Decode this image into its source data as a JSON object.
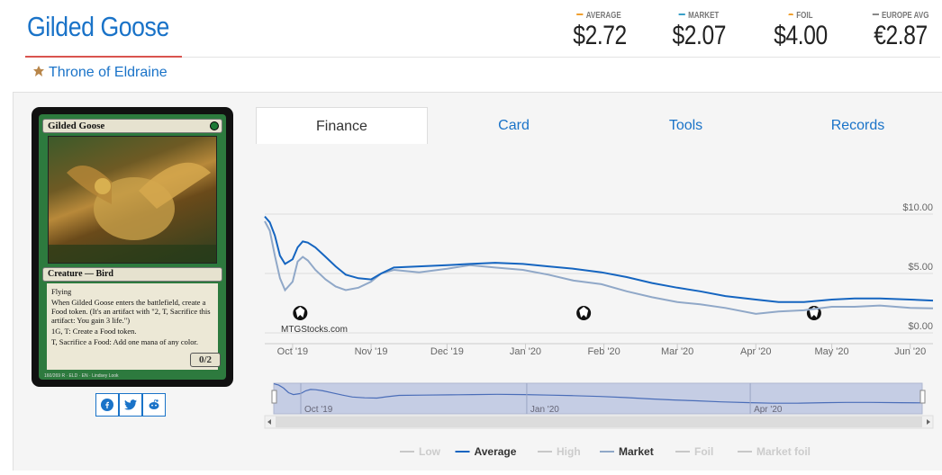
{
  "card": {
    "name": "Gilded Goose",
    "set": "Throne of Eldraine",
    "type_line": "Creature — Bird",
    "rules": [
      "Flying",
      "When Gilded Goose enters the battlefield, create a Food token. (It's an artifact with \"2, T, Sacrifice this artifact: You gain 3 life.\")",
      "1G, T: Create a Food token.",
      "T, Sacrifice a Food: Add one mana of any color."
    ],
    "pt": "0/2",
    "footer": "160/269 R · ELD · EN · Lindsey Look"
  },
  "prices": [
    {
      "label": "AVERAGE",
      "value": "$2.72",
      "color": "#f0a030"
    },
    {
      "label": "MARKET",
      "value": "$2.07",
      "color": "#3aa0c8"
    },
    {
      "label": "FOIL",
      "value": "$4.00",
      "color": "#f0a030"
    },
    {
      "label": "EUROPE AVG",
      "value": "€2.87",
      "color": "#888888"
    }
  ],
  "tabs": [
    "Finance",
    "Card",
    "Tools",
    "Records"
  ],
  "active_tab": "Finance",
  "watermark": "MTGStocks.com",
  "chart_data": {
    "type": "line",
    "x_ticks": [
      "Oct '19",
      "Nov '19",
      "Dec '19",
      "Jan '20",
      "Feb '20",
      "Mar '20",
      "Apr '20",
      "May '20",
      "Jun '20"
    ],
    "y_ticks": [
      "$10.00",
      "$5.00",
      "$0.00"
    ],
    "ylim": [
      0,
      10
    ],
    "legend": [
      "Low",
      "Average",
      "High",
      "Market",
      "Foil",
      "Market foil"
    ],
    "legend_active": [
      "Average",
      "Market"
    ],
    "navigator_labels": [
      "Oct '19",
      "Jan '20",
      "Apr '20"
    ],
    "series": [
      {
        "name": "Average",
        "color": "#1565c0",
        "points": [
          [
            "2019-09-20",
            9.8
          ],
          [
            "2019-09-22",
            9.3
          ],
          [
            "2019-09-24",
            8.2
          ],
          [
            "2019-09-26",
            6.5
          ],
          [
            "2019-09-28",
            5.8
          ],
          [
            "2019-10-01",
            6.2
          ],
          [
            "2019-10-03",
            7.2
          ],
          [
            "2019-10-05",
            7.7
          ],
          [
            "2019-10-07",
            7.6
          ],
          [
            "2019-10-10",
            7.2
          ],
          [
            "2019-10-14",
            6.4
          ],
          [
            "2019-10-18",
            5.6
          ],
          [
            "2019-10-22",
            4.9
          ],
          [
            "2019-10-27",
            4.6
          ],
          [
            "2019-11-01",
            4.5
          ],
          [
            "2019-11-05",
            5.0
          ],
          [
            "2019-11-10",
            5.5
          ],
          [
            "2019-11-20",
            5.6
          ],
          [
            "2019-12-01",
            5.7
          ],
          [
            "2019-12-10",
            5.8
          ],
          [
            "2019-12-20",
            5.9
          ],
          [
            "2019-12-31",
            5.8
          ],
          [
            "2020-01-10",
            5.6
          ],
          [
            "2020-01-20",
            5.4
          ],
          [
            "2020-01-31",
            5.1
          ],
          [
            "2020-02-10",
            4.7
          ],
          [
            "2020-02-20",
            4.2
          ],
          [
            "2020-03-01",
            3.8
          ],
          [
            "2020-03-10",
            3.5
          ],
          [
            "2020-03-20",
            3.1
          ],
          [
            "2020-04-01",
            2.8
          ],
          [
            "2020-04-10",
            2.6
          ],
          [
            "2020-04-20",
            2.6
          ],
          [
            "2020-05-01",
            2.8
          ],
          [
            "2020-05-10",
            2.9
          ],
          [
            "2020-05-20",
            2.9
          ],
          [
            "2020-06-01",
            2.8
          ],
          [
            "2020-06-10",
            2.72
          ]
        ]
      },
      {
        "name": "Market",
        "color": "#90a8c8",
        "points": [
          [
            "2019-09-20",
            9.4
          ],
          [
            "2019-09-22",
            8.6
          ],
          [
            "2019-09-24",
            6.5
          ],
          [
            "2019-09-26",
            4.6
          ],
          [
            "2019-09-28",
            3.6
          ],
          [
            "2019-10-01",
            4.3
          ],
          [
            "2019-10-03",
            6.0
          ],
          [
            "2019-10-05",
            6.4
          ],
          [
            "2019-10-07",
            6.1
          ],
          [
            "2019-10-10",
            5.3
          ],
          [
            "2019-10-14",
            4.5
          ],
          [
            "2019-10-18",
            3.9
          ],
          [
            "2019-10-22",
            3.6
          ],
          [
            "2019-10-27",
            3.8
          ],
          [
            "2019-11-01",
            4.3
          ],
          [
            "2019-11-05",
            5.0
          ],
          [
            "2019-11-10",
            5.3
          ],
          [
            "2019-11-20",
            5.1
          ],
          [
            "2019-12-01",
            5.4
          ],
          [
            "2019-12-10",
            5.7
          ],
          [
            "2019-12-20",
            5.5
          ],
          [
            "2019-12-31",
            5.3
          ],
          [
            "2020-01-10",
            4.9
          ],
          [
            "2020-01-20",
            4.4
          ],
          [
            "2020-01-31",
            4.1
          ],
          [
            "2020-02-10",
            3.5
          ],
          [
            "2020-02-20",
            3.0
          ],
          [
            "2020-03-01",
            2.6
          ],
          [
            "2020-03-10",
            2.4
          ],
          [
            "2020-03-20",
            2.1
          ],
          [
            "2020-04-01",
            1.6
          ],
          [
            "2020-04-10",
            1.8
          ],
          [
            "2020-04-20",
            1.9
          ],
          [
            "2020-05-01",
            2.2
          ],
          [
            "2020-05-10",
            2.2
          ],
          [
            "2020-05-20",
            2.3
          ],
          [
            "2020-06-01",
            2.1
          ],
          [
            "2020-06-10",
            2.07
          ]
        ]
      }
    ]
  }
}
